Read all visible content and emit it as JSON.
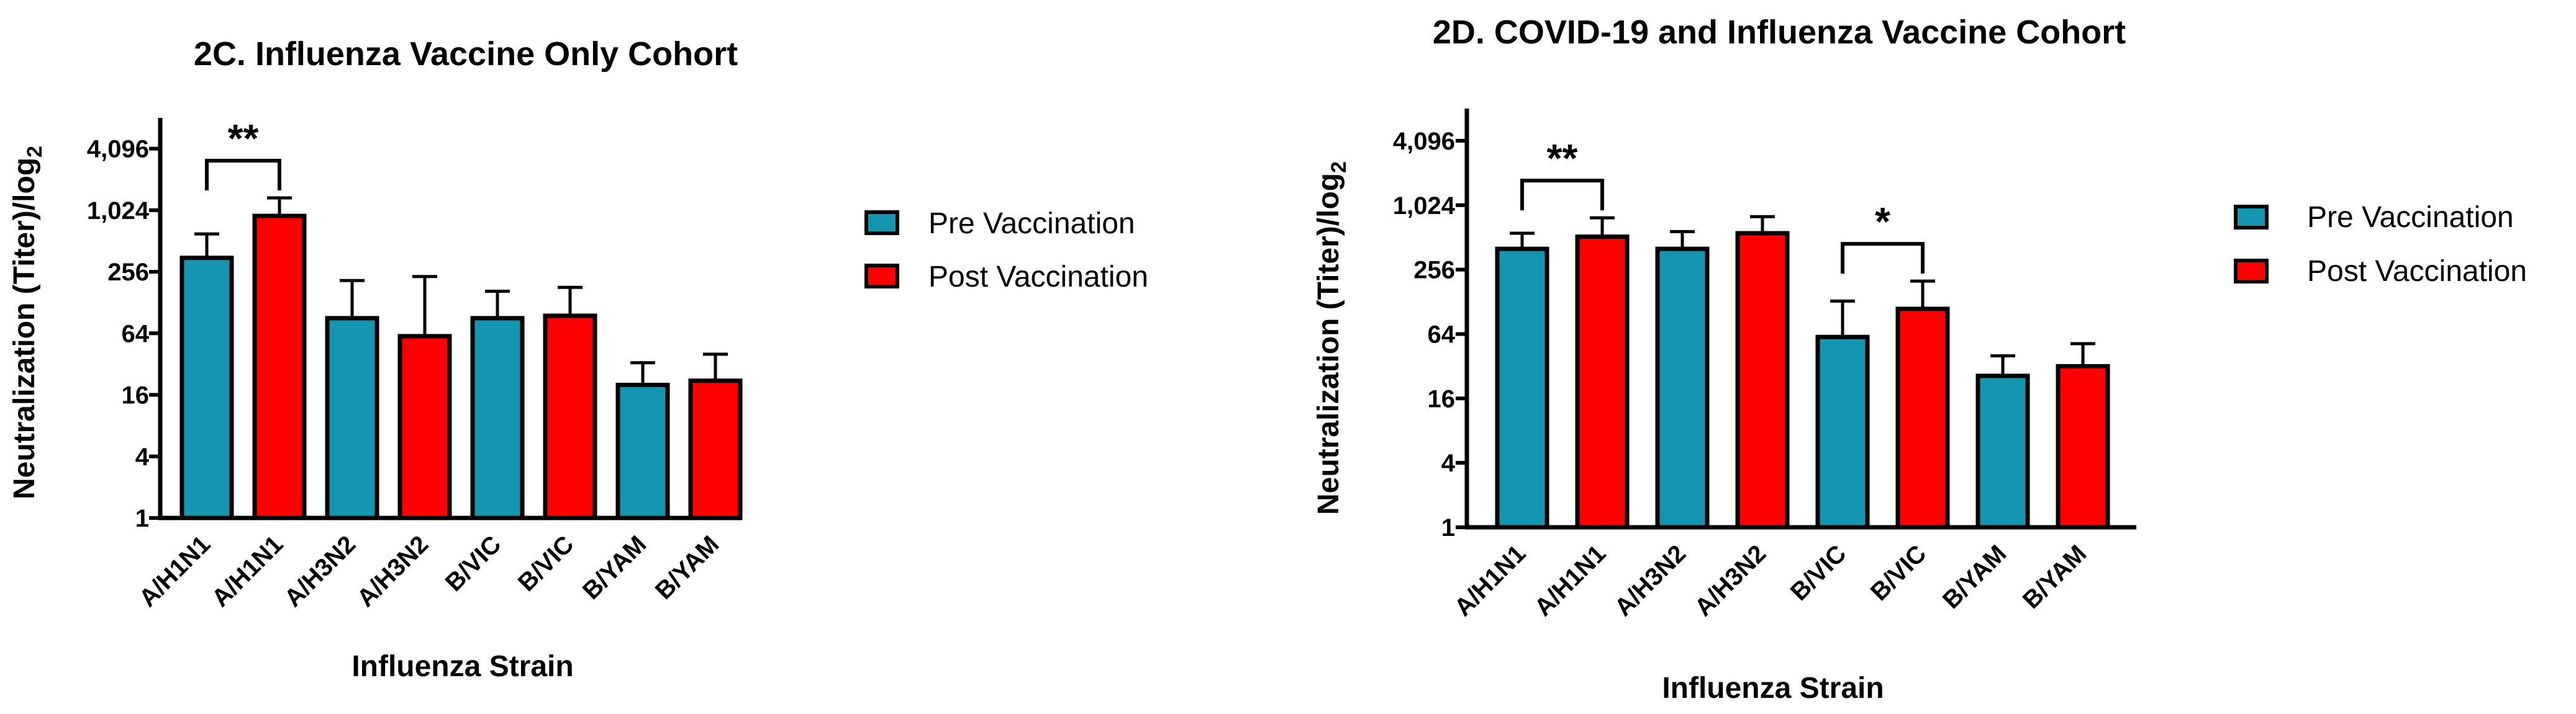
{
  "colors": {
    "pre": "#1496b0",
    "post": "#ff0000",
    "outline": "#000000"
  },
  "legend": {
    "pre_label": "Pre Vaccination",
    "post_label": "Post Vaccination"
  },
  "chart_data": [
    {
      "type": "bar",
      "title": "2C. Influenza Vaccine Only Cohort",
      "xlabel": "Influenza Strain",
      "ylabel": "Neutralization (Titer)/log",
      "ylabel_sub": "2",
      "yscale": "log2",
      "ylim": [
        1,
        8192
      ],
      "yticks": [
        1,
        4,
        16,
        64,
        256,
        1024,
        4096
      ],
      "ytick_labels": [
        "1",
        "4",
        "16",
        "64",
        "256",
        "1,024",
        "4,096"
      ],
      "categories": [
        "A/H1N1",
        "A/H1N1",
        "A/H3N2",
        "A/H3N2",
        "B/VIC",
        "B/VIC",
        "B/YAM",
        "B/YAM"
      ],
      "groups": [
        "pre",
        "post",
        "pre",
        "post",
        "pre",
        "post",
        "pre",
        "post"
      ],
      "values": [
        350,
        900,
        90,
        60,
        90,
        95,
        20,
        22
      ],
      "error_upper": [
        600,
        1350,
        210,
        230,
        165,
        180,
        33,
        40
      ],
      "significance": [
        {
          "from": 0,
          "to": 1,
          "label": "**"
        }
      ]
    },
    {
      "type": "bar",
      "title": "2D. COVID-19 and Influenza Vaccine Cohort",
      "xlabel": "Influenza Strain",
      "ylabel": "Neutralization (Titer)/log",
      "ylabel_sub": "2",
      "yscale": "log2",
      "ylim": [
        1,
        8192
      ],
      "yticks": [
        1,
        4,
        16,
        64,
        256,
        1024,
        4096
      ],
      "ytick_labels": [
        "1",
        "4",
        "16",
        "64",
        "256",
        "1,024",
        "4,096"
      ],
      "categories": [
        "A/H1N1",
        "A/H1N1",
        "A/H3N2",
        "A/H3N2",
        "B/VIC",
        "B/VIC",
        "B/YAM",
        "B/YAM"
      ],
      "groups": [
        "pre",
        "post",
        "pre",
        "post",
        "pre",
        "post",
        "pre",
        "post"
      ],
      "values": [
        400,
        520,
        400,
        560,
        60,
        110,
        26,
        32
      ],
      "error_upper": [
        560,
        780,
        580,
        800,
        130,
        200,
        40,
        52
      ],
      "significance": [
        {
          "from": 0,
          "to": 1,
          "label": "**"
        },
        {
          "from": 4,
          "to": 5,
          "label": "*"
        }
      ]
    }
  ]
}
